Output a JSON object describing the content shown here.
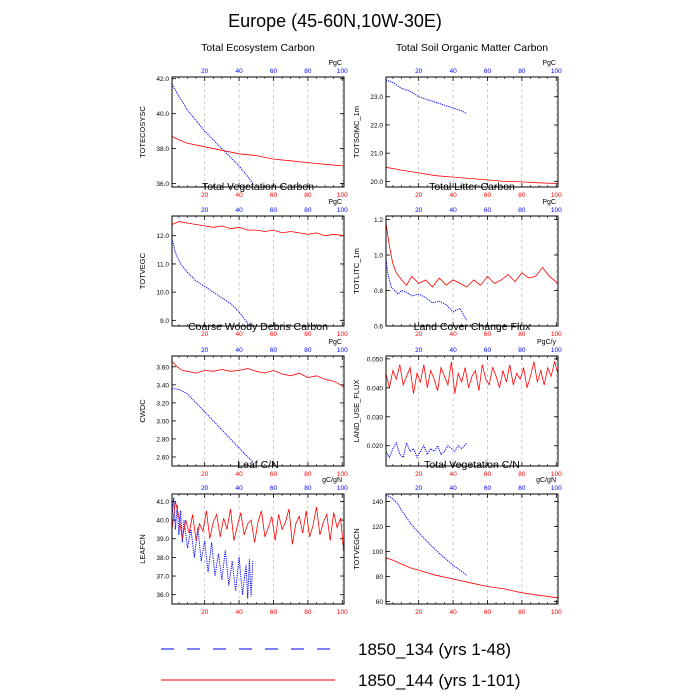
{
  "title": "Europe (45-60N,10W-30E)",
  "colors": {
    "case_a": "#0000ff",
    "case_b": "#ff0000",
    "grid": "#aaaaaa"
  },
  "legend": {
    "entries": [
      {
        "label": "1850_134 (yrs 1-48)",
        "color": "#0000ff",
        "style": "dashed"
      },
      {
        "label": "1850_144 (yrs 1-101)",
        "color": "#ff0000",
        "style": "solid"
      }
    ]
  },
  "chart_data": [
    {
      "type": "line",
      "title": "Total Ecosystem Carbon",
      "ylabel": "TOTECOSYSC",
      "unit": "PgC",
      "xlim": [
        1,
        101
      ],
      "ylim": [
        35.8,
        42.1
      ],
      "yticks": [
        "36.0",
        "38.0",
        "40.0",
        "42.0"
      ],
      "xticks": [
        "20",
        "40",
        "60",
        "80",
        "100"
      ],
      "series": [
        {
          "label": "1850_134 (yrs 1-48)",
          "color": "#0000ff",
          "dash": true,
          "x": [
            1,
            5,
            10,
            15,
            20,
            25,
            30,
            35,
            40,
            45,
            48
          ],
          "y": [
            41.7,
            41.0,
            40.2,
            39.6,
            39.0,
            38.5,
            38.0,
            37.5,
            37.0,
            36.4,
            36.0
          ]
        },
        {
          "label": "1850_144 (yrs 1-101)",
          "color": "#ff0000",
          "dash": false,
          "x": [
            1,
            5,
            10,
            20,
            30,
            40,
            50,
            60,
            70,
            80,
            90,
            101
          ],
          "y": [
            38.7,
            38.5,
            38.3,
            38.1,
            37.9,
            37.7,
            37.6,
            37.4,
            37.3,
            37.2,
            37.1,
            37.0
          ]
        }
      ]
    },
    {
      "type": "line",
      "title": "Total Soil Organic Matter Carbon",
      "ylabel": "TOTSOMC_1m",
      "unit": "PgC",
      "xlim": [
        1,
        101
      ],
      "ylim": [
        19.8,
        23.7
      ],
      "yticks": [
        "20.0",
        "21.0",
        "22.0",
        "23.0"
      ],
      "xticks": [
        "20",
        "40",
        "60",
        "80",
        "100"
      ],
      "series": [
        {
          "label": "1850_134 (yrs 1-48)",
          "color": "#0000ff",
          "dash": true,
          "x": [
            1,
            5,
            10,
            15,
            20,
            25,
            30,
            35,
            40,
            45,
            48
          ],
          "y": [
            23.6,
            23.5,
            23.3,
            23.2,
            23.0,
            22.9,
            22.8,
            22.7,
            22.6,
            22.5,
            22.4
          ]
        },
        {
          "label": "1850_144 (yrs 1-101)",
          "color": "#ff0000",
          "dash": false,
          "x": [
            1,
            10,
            20,
            30,
            40,
            50,
            60,
            70,
            80,
            90,
            101
          ],
          "y": [
            20.5,
            20.4,
            20.3,
            20.2,
            20.15,
            20.1,
            20.05,
            20.0,
            19.98,
            19.95,
            19.92
          ]
        }
      ]
    },
    {
      "type": "line",
      "title": "Total Vegetation Carbon",
      "ylabel": "TOTVEGC",
      "unit": "PgC",
      "xlim": [
        1,
        101
      ],
      "ylim": [
        8.8,
        12.7
      ],
      "yticks": [
        "9.0",
        "10.0",
        "11.0",
        "12.0"
      ],
      "xticks": [
        "20",
        "40",
        "60",
        "80",
        "100"
      ],
      "series": [
        {
          "label": "1850_134 (yrs 1-48)",
          "color": "#0000ff",
          "dash": true,
          "x": [
            1,
            3,
            6,
            10,
            15,
            20,
            25,
            30,
            35,
            40,
            45,
            48
          ],
          "y": [
            11.9,
            11.4,
            11.0,
            10.7,
            10.4,
            10.2,
            10.0,
            9.8,
            9.6,
            9.3,
            8.9,
            8.8
          ]
        },
        {
          "label": "1850_144 (yrs 1-101)",
          "color": "#ff0000",
          "dash": false,
          "x": [
            1,
            5,
            10,
            15,
            20,
            25,
            30,
            35,
            40,
            45,
            50,
            55,
            60,
            65,
            70,
            75,
            80,
            85,
            90,
            95,
            101
          ],
          "y": [
            12.4,
            12.5,
            12.45,
            12.4,
            12.35,
            12.3,
            12.35,
            12.25,
            12.3,
            12.2,
            12.2,
            12.15,
            12.2,
            12.1,
            12.15,
            12.1,
            12.05,
            12.1,
            12.0,
            12.05,
            12.0
          ]
        }
      ]
    },
    {
      "type": "line",
      "title": "Total Litter Carbon",
      "ylabel": "TOTLITC_1m",
      "unit": "PgC",
      "xlim": [
        1,
        101
      ],
      "ylim": [
        0.6,
        1.22
      ],
      "yticks": [
        "0.6",
        "0.8",
        "1.0",
        "1.2"
      ],
      "xticks": [
        "20",
        "40",
        "60",
        "80",
        "100"
      ],
      "series": [
        {
          "label": "1850_134 (yrs 1-48)",
          "color": "#0000ff",
          "dash": true,
          "x": [
            1,
            2,
            4,
            6,
            8,
            10,
            13,
            16,
            20,
            24,
            28,
            32,
            36,
            40,
            44,
            48
          ],
          "y": [
            0.98,
            0.9,
            0.82,
            0.8,
            0.78,
            0.8,
            0.79,
            0.77,
            0.78,
            0.76,
            0.73,
            0.74,
            0.72,
            0.68,
            0.7,
            0.63
          ]
        },
        {
          "label": "1850_144 (yrs 1-101)",
          "color": "#ff0000",
          "dash": false,
          "x": [
            1,
            3,
            5,
            7,
            10,
            13,
            16,
            20,
            24,
            28,
            32,
            36,
            40,
            44,
            48,
            52,
            56,
            60,
            64,
            68,
            72,
            76,
            80,
            84,
            88,
            92,
            96,
            101
          ],
          "y": [
            1.18,
            1.05,
            0.95,
            0.9,
            0.86,
            0.83,
            0.88,
            0.84,
            0.86,
            0.82,
            0.87,
            0.83,
            0.86,
            0.84,
            0.82,
            0.86,
            0.83,
            0.88,
            0.84,
            0.86,
            0.89,
            0.85,
            0.9,
            0.87,
            0.88,
            0.93,
            0.88,
            0.84
          ]
        }
      ]
    },
    {
      "type": "line",
      "title": "Coarse Woody Debris Carbon",
      "ylabel": "CWDC",
      "unit": "PgC",
      "xlim": [
        1,
        101
      ],
      "ylim": [
        2.5,
        3.72
      ],
      "yticks": [
        "2.60",
        "2.80",
        "3.00",
        "3.20",
        "3.40",
        "3.60"
      ],
      "xticks": [
        "20",
        "40",
        "60",
        "80",
        "100"
      ],
      "series": [
        {
          "label": "1850_134 (yrs 1-48)",
          "color": "#0000ff",
          "dash": true,
          "x": [
            1,
            5,
            10,
            15,
            20,
            25,
            30,
            35,
            40,
            45,
            48
          ],
          "y": [
            3.36,
            3.35,
            3.3,
            3.2,
            3.1,
            3.0,
            2.9,
            2.8,
            2.7,
            2.6,
            2.55
          ]
        },
        {
          "label": "1850_144 (yrs 1-101)",
          "color": "#ff0000",
          "dash": false,
          "x": [
            1,
            4,
            7,
            10,
            15,
            20,
            25,
            30,
            35,
            40,
            45,
            50,
            55,
            60,
            65,
            70,
            75,
            80,
            85,
            90,
            95,
            101
          ],
          "y": [
            3.66,
            3.6,
            3.56,
            3.55,
            3.53,
            3.56,
            3.55,
            3.57,
            3.55,
            3.56,
            3.58,
            3.55,
            3.53,
            3.56,
            3.52,
            3.5,
            3.53,
            3.48,
            3.5,
            3.46,
            3.44,
            3.38
          ]
        }
      ]
    },
    {
      "type": "line",
      "title": "Land Cover Change Flux",
      "ylabel": "LAND_USE_FLUX",
      "unit": "PgC/y",
      "xlim": [
        1,
        101
      ],
      "ylim": [
        0.013,
        0.051
      ],
      "yticks": [
        "0.020",
        "0.030",
        "0.040",
        "0.050"
      ],
      "xticks": [
        "20",
        "40",
        "60",
        "80",
        "100"
      ],
      "series": [
        {
          "label": "1850_134 (yrs 1-48)",
          "color": "#0000ff",
          "dash": true,
          "x": [
            1,
            3,
            5,
            7,
            9,
            11,
            13,
            15,
            17,
            19,
            21,
            23,
            25,
            27,
            29,
            31,
            33,
            35,
            37,
            39,
            41,
            43,
            45,
            48
          ],
          "y": [
            0.018,
            0.016,
            0.019,
            0.021,
            0.017,
            0.016,
            0.021,
            0.018,
            0.019,
            0.016,
            0.018,
            0.02,
            0.017,
            0.019,
            0.018,
            0.02,
            0.017,
            0.018,
            0.02,
            0.019,
            0.018,
            0.02,
            0.019,
            0.021
          ]
        },
        {
          "label": "1850_144 (yrs 1-101)",
          "color": "#ff0000",
          "dash": false,
          "x": [
            1,
            3,
            5,
            7,
            9,
            11,
            13,
            15,
            17,
            19,
            21,
            23,
            25,
            27,
            29,
            31,
            33,
            35,
            37,
            39,
            41,
            43,
            45,
            47,
            49,
            51,
            53,
            55,
            57,
            59,
            61,
            63,
            65,
            67,
            69,
            71,
            73,
            75,
            77,
            79,
            81,
            83,
            85,
            87,
            89,
            91,
            93,
            95,
            97,
            99,
            101
          ],
          "y": [
            0.045,
            0.04,
            0.046,
            0.043,
            0.048,
            0.041,
            0.044,
            0.047,
            0.038,
            0.045,
            0.042,
            0.048,
            0.04,
            0.046,
            0.043,
            0.039,
            0.047,
            0.044,
            0.041,
            0.049,
            0.038,
            0.045,
            0.042,
            0.047,
            0.04,
            0.044,
            0.046,
            0.039,
            0.048,
            0.043,
            0.041,
            0.047,
            0.044,
            0.04,
            0.046,
            0.042,
            0.048,
            0.041,
            0.045,
            0.043,
            0.047,
            0.04,
            0.044,
            0.049,
            0.042,
            0.046,
            0.041,
            0.047,
            0.044,
            0.049,
            0.045
          ]
        }
      ]
    },
    {
      "type": "line",
      "title": "Leaf C/N",
      "ylabel": "LEAFCN",
      "unit": "gC/gN",
      "xlim": [
        1,
        101
      ],
      "ylim": [
        35.5,
        41.4
      ],
      "yticks": [
        "36.0",
        "37.0",
        "38.0",
        "39.0",
        "40.0",
        "41.0"
      ],
      "xticks": [
        "20",
        "40",
        "60",
        "80",
        "100"
      ],
      "series": [
        {
          "label": "1850_134 (yrs 1-48)",
          "color": "#0000ff",
          "dash": true,
          "x": [
            1,
            2,
            3,
            4,
            5,
            6,
            7,
            8,
            10,
            12,
            14,
            16,
            18,
            20,
            22,
            24,
            26,
            28,
            30,
            32,
            34,
            36,
            38,
            40,
            42,
            44,
            45,
            46,
            47,
            48
          ],
          "y": [
            40.2,
            41.2,
            39.5,
            40.8,
            39.2,
            40.5,
            38.8,
            40.0,
            38.5,
            39.5,
            38.0,
            39.6,
            37.8,
            38.9,
            37.2,
            38.8,
            37.0,
            38.2,
            36.8,
            38.4,
            36.5,
            37.8,
            36.2,
            38.0,
            36.0,
            37.6,
            35.8,
            37.9,
            35.9,
            37.8
          ]
        },
        {
          "label": "1850_144 (yrs 1-101)",
          "color": "#ff0000",
          "dash": false,
          "x": [
            1,
            3,
            5,
            7,
            9,
            11,
            13,
            15,
            17,
            19,
            21,
            23,
            25,
            27,
            29,
            31,
            33,
            35,
            37,
            39,
            41,
            43,
            45,
            47,
            49,
            51,
            53,
            55,
            57,
            59,
            61,
            63,
            65,
            67,
            69,
            71,
            73,
            75,
            77,
            79,
            81,
            83,
            85,
            87,
            89,
            91,
            93,
            95,
            97,
            99,
            101
          ],
          "y": [
            39.5,
            41.0,
            40.2,
            39.0,
            40.0,
            39.3,
            40.3,
            38.9,
            39.8,
            39.4,
            40.5,
            39.0,
            39.9,
            40.3,
            39.1,
            40.1,
            39.5,
            40.6,
            38.9,
            39.7,
            40.4,
            39.2,
            39.8,
            40.0,
            38.8,
            39.9,
            40.5,
            39.1,
            39.6,
            40.2,
            38.9,
            40.3,
            39.5,
            39.9,
            40.6,
            38.7,
            39.8,
            40.2,
            39.3,
            40.5,
            39.1,
            39.7,
            40.7,
            39.2,
            39.9,
            40.3,
            38.9,
            40.4,
            39.6,
            40.1,
            38.2
          ]
        }
      ]
    },
    {
      "type": "line",
      "title": "Total Vegetation C/N",
      "ylabel": "TOTVEGCN",
      "unit": "gC/gN",
      "xlim": [
        1,
        101
      ],
      "ylim": [
        58,
        146
      ],
      "yticks": [
        "60",
        "80",
        "100",
        "120",
        "140"
      ],
      "xticks": [
        "20",
        "40",
        "60",
        "80",
        "100"
      ],
      "series": [
        {
          "label": "1850_134 (yrs 1-48)",
          "color": "#0000ff",
          "dash": true,
          "x": [
            1,
            3,
            5,
            8,
            10,
            15,
            20,
            25,
            30,
            35,
            40,
            45,
            48
          ],
          "y": [
            145,
            144,
            142,
            138,
            133,
            123,
            115,
            108,
            101,
            95,
            89,
            84,
            81
          ]
        },
        {
          "label": "1850_144 (yrs 1-101)",
          "color": "#ff0000",
          "dash": false,
          "x": [
            1,
            5,
            10,
            15,
            20,
            25,
            30,
            40,
            50,
            60,
            70,
            80,
            90,
            101
          ],
          "y": [
            95,
            93,
            90,
            87,
            85,
            83,
            81,
            78,
            75,
            72,
            70,
            67,
            65,
            63
          ]
        }
      ]
    }
  ]
}
